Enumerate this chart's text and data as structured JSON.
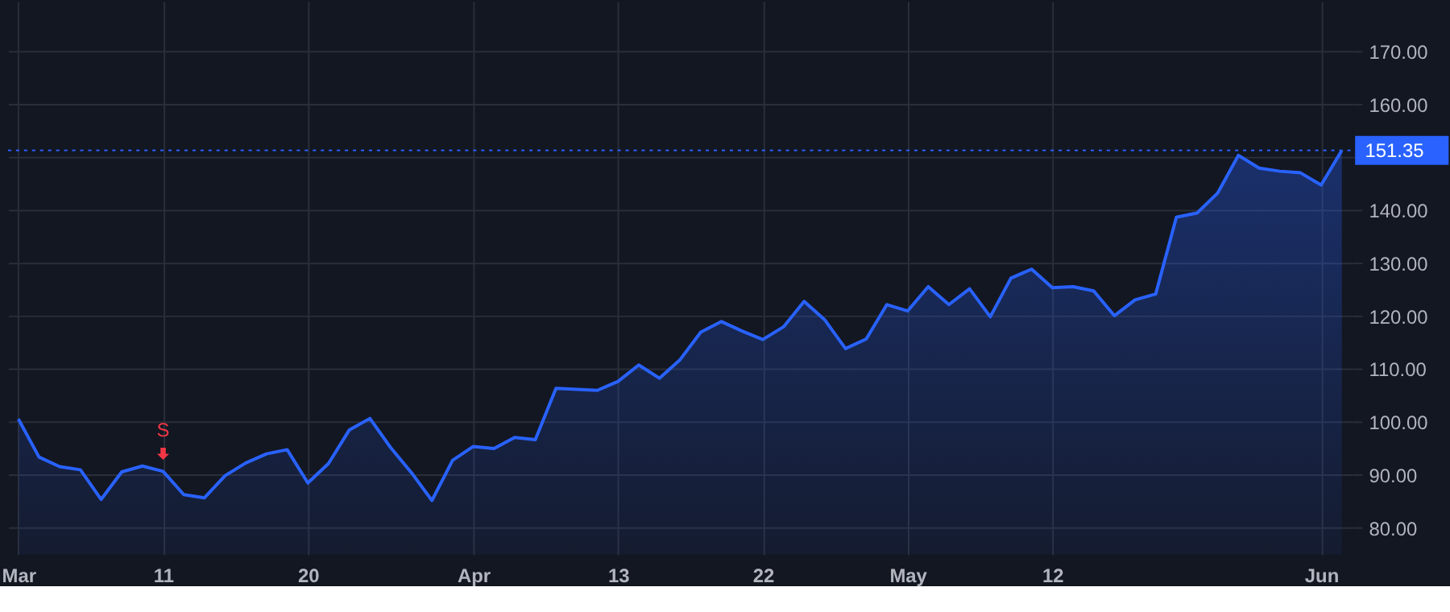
{
  "chart_data": {
    "type": "area",
    "categories": [
      "Mar",
      null,
      null,
      null,
      null,
      null,
      null,
      "11",
      null,
      null,
      null,
      null,
      null,
      null,
      "20",
      null,
      null,
      null,
      null,
      null,
      null,
      null,
      "Apr",
      null,
      null,
      null,
      null,
      null,
      null,
      "13",
      null,
      null,
      null,
      null,
      null,
      null,
      "22",
      null,
      null,
      null,
      null,
      null,
      null,
      "May",
      null,
      null,
      null,
      null,
      null,
      null,
      "12",
      null,
      null,
      null,
      null,
      null,
      null,
      null,
      null,
      null,
      null,
      null,
      null,
      "Jun",
      null
    ],
    "series": [
      {
        "color": "#2962ff",
        "values": [
          100.6,
          93.4,
          91.6,
          91.0,
          85.4,
          90.6,
          91.7,
          90.7,
          86.3,
          85.7,
          89.9,
          92.3,
          94.0,
          94.8,
          88.5,
          92.2,
          98.5,
          100.7,
          95.2,
          90.5,
          85.2,
          92.8,
          95.4,
          95.0,
          97.1,
          96.7,
          106.4,
          106.2,
          106.0,
          107.7,
          110.8,
          108.3,
          111.8,
          117.0,
          119.0,
          117.2,
          115.6,
          118.0,
          122.8,
          119.3,
          113.9,
          115.7,
          122.2,
          121.0,
          125.6,
          122.2,
          125.2,
          119.9,
          127.2,
          128.9,
          125.4,
          125.6,
          124.8,
          120.1,
          123.1,
          124.2,
          138.7,
          139.5,
          143.3,
          150.4,
          148.0,
          147.4,
          147.1,
          144.8,
          151.35
        ]
      }
    ],
    "ylim": [
      75,
      179.5
    ],
    "yticks": [
      {
        "value": 80,
        "label": "80.00"
      },
      {
        "value": 90,
        "label": "90.00"
      },
      {
        "value": 100,
        "label": "100.00"
      },
      {
        "value": 110,
        "label": "110.00"
      },
      {
        "value": 120,
        "label": "120.00"
      },
      {
        "value": 130,
        "label": "130.00"
      },
      {
        "value": 140,
        "label": "140.00"
      },
      {
        "value": 150,
        "label": null
      },
      {
        "value": 160,
        "label": "160.00"
      },
      {
        "value": 170,
        "label": "170.00"
      }
    ],
    "grid": true,
    "ref_lines": [
      {
        "axis": "y",
        "value": 151.35,
        "label": "151.35",
        "color": "#2962ff",
        "line_style": "dotted"
      }
    ],
    "annotations": [
      {
        "text": "S",
        "x": "11",
        "y": 90.7
      }
    ]
  }
}
